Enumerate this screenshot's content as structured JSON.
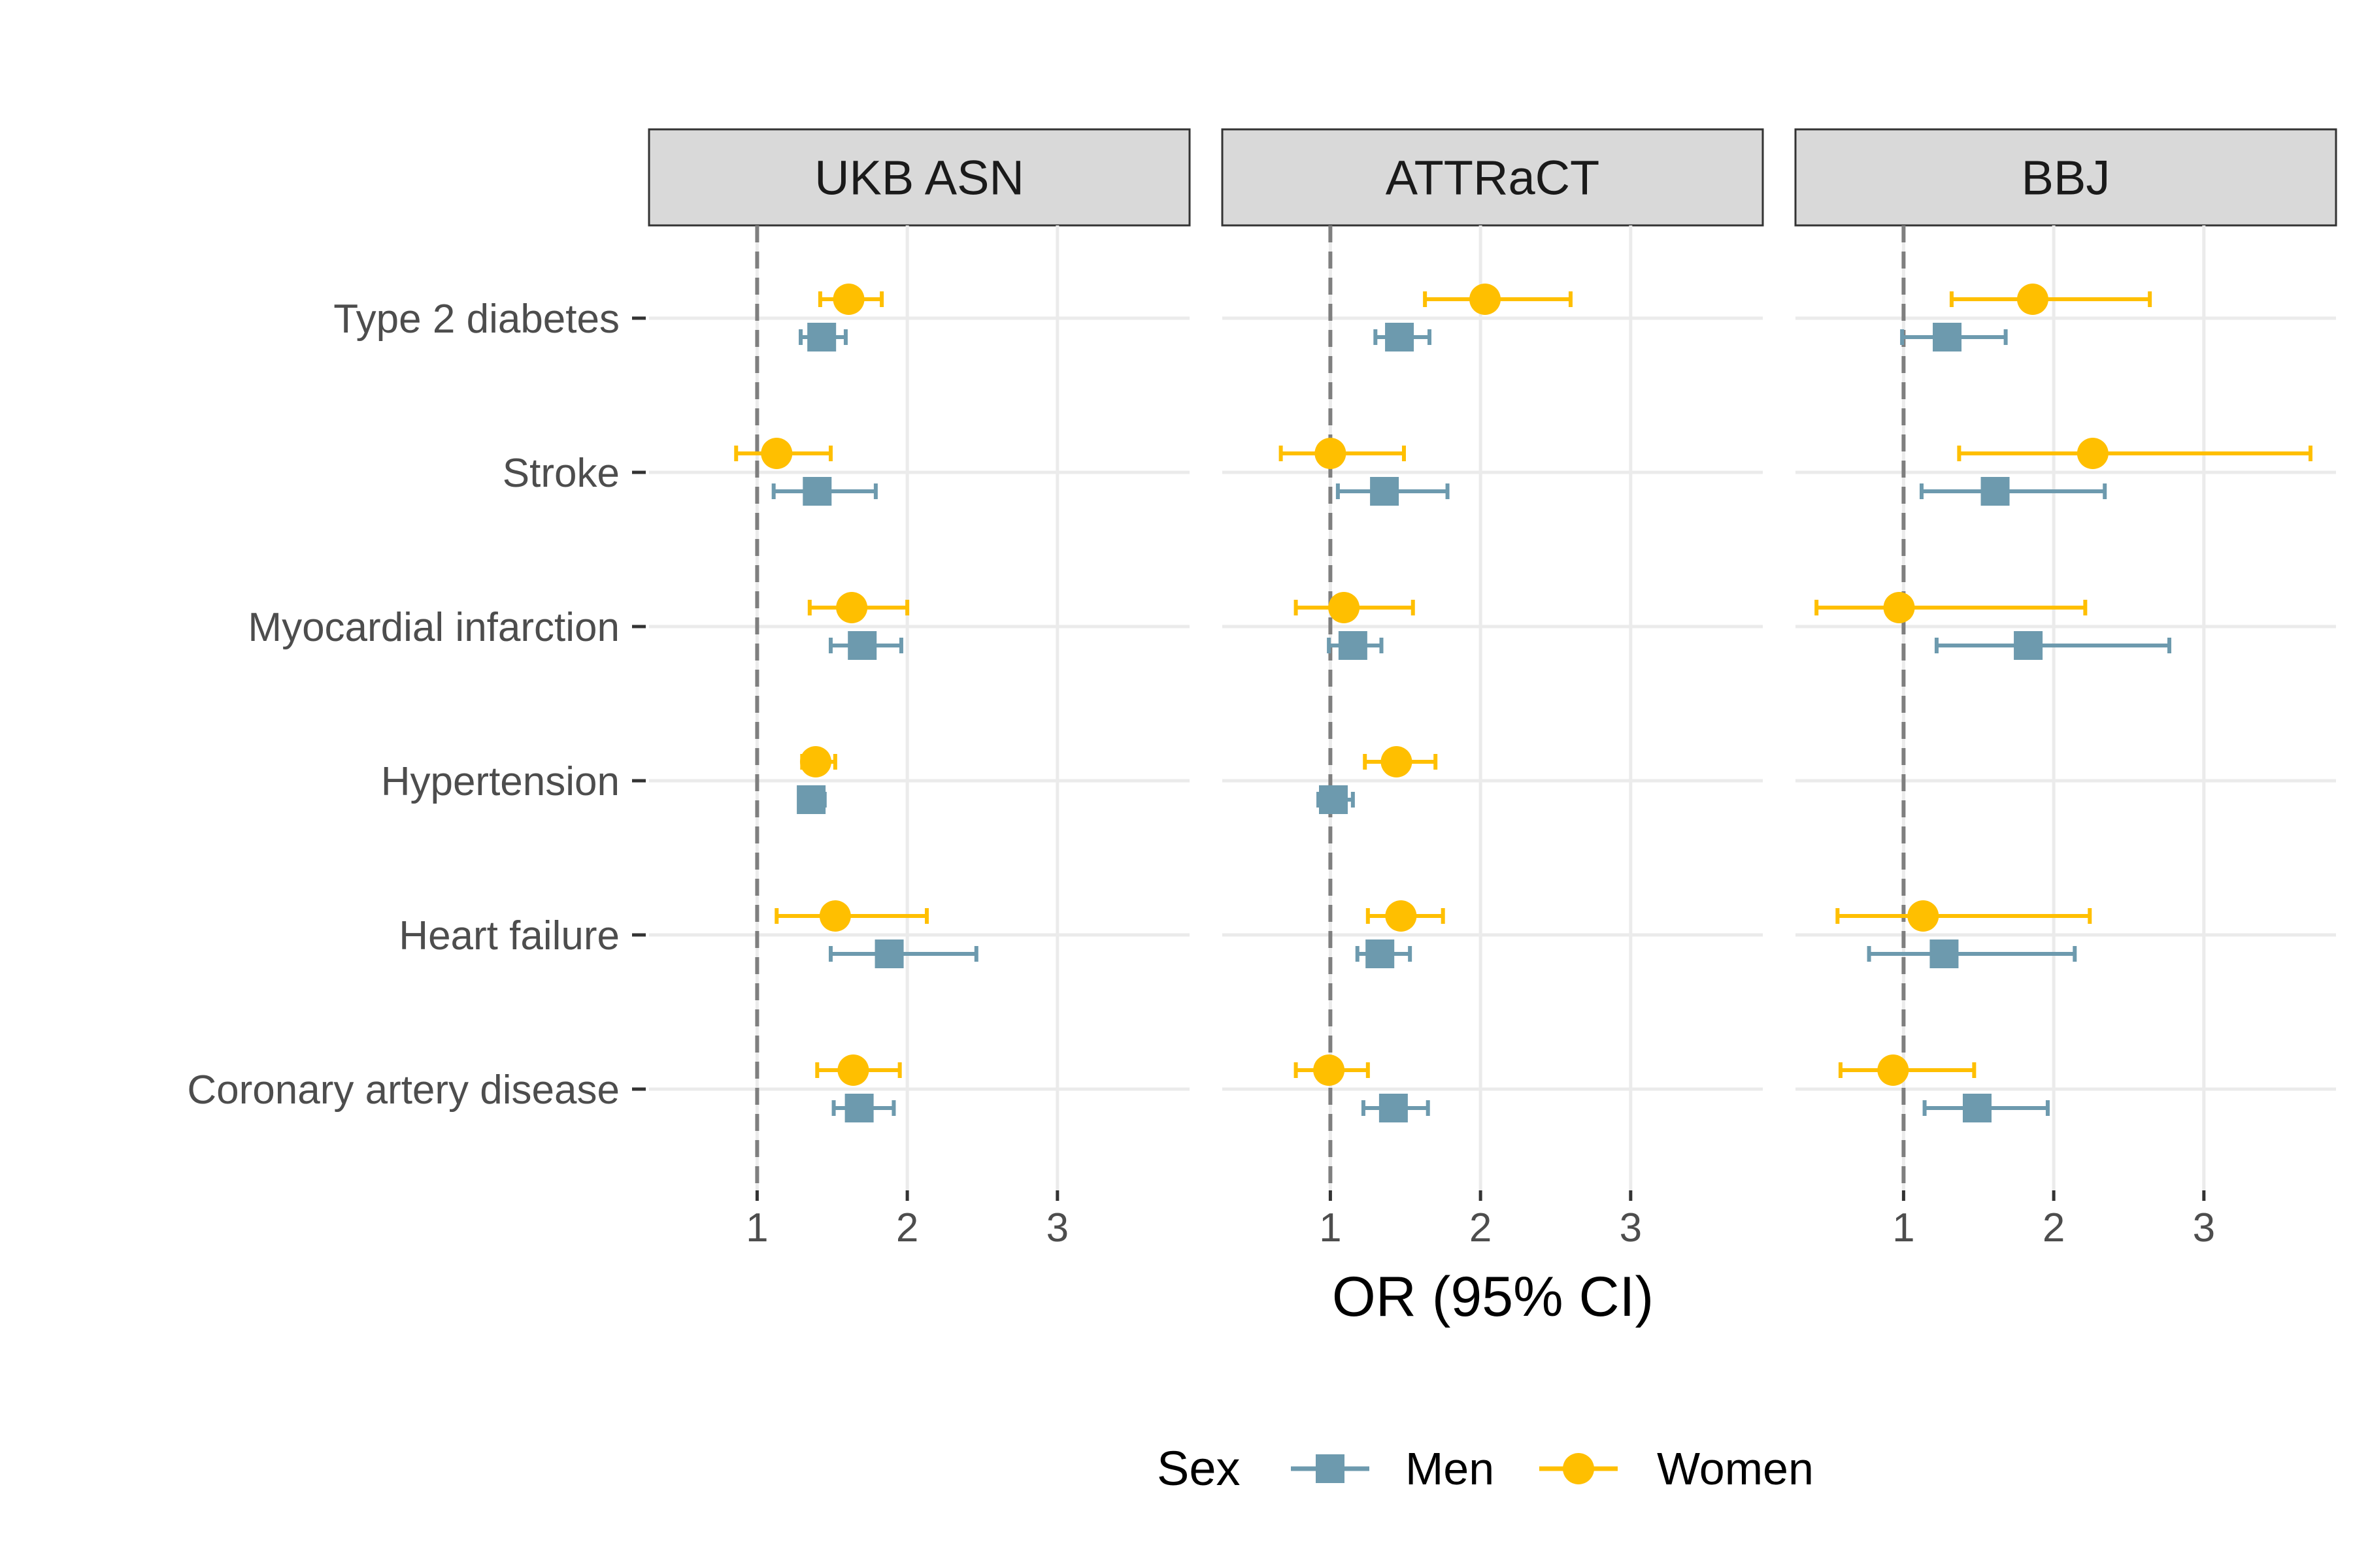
{
  "chart_data": {
    "type": "forest",
    "xlabel": "OR (95% CI)",
    "xticks": [
      1,
      2,
      3
    ],
    "xlim": [
      0.28,
      3.88
    ],
    "reference_line": 1,
    "grid": true,
    "legend": {
      "title": "Sex",
      "position": "bottom",
      "entries": [
        {
          "name": "Men",
          "color": "#6d9aae",
          "shape": "square"
        },
        {
          "name": "Women",
          "color": "#ffbf00",
          "shape": "circle"
        }
      ]
    },
    "categories": [
      "Type 2 diabetes",
      "Stroke",
      "Myocardial infarction",
      "Hypertension",
      "Heart failure",
      "Coronary artery disease"
    ],
    "panels": [
      {
        "name": "UKB ASN",
        "series": [
          {
            "name": "Men",
            "points": [
              {
                "or": 1.43,
                "lo": 1.29,
                "hi": 1.59
              },
              {
                "or": 1.4,
                "lo": 1.11,
                "hi": 1.79
              },
              {
                "or": 1.7,
                "lo": 1.49,
                "hi": 1.96
              },
              {
                "or": 1.36,
                "lo": 1.28,
                "hi": 1.45
              },
              {
                "or": 1.88,
                "lo": 1.49,
                "hi": 2.46
              },
              {
                "or": 1.68,
                "lo": 1.51,
                "hi": 1.91
              }
            ]
          },
          {
            "name": "Women",
            "points": [
              {
                "or": 1.61,
                "lo": 1.42,
                "hi": 1.83
              },
              {
                "or": 1.13,
                "lo": 0.86,
                "hi": 1.49
              },
              {
                "or": 1.63,
                "lo": 1.35,
                "hi": 2.0
              },
              {
                "or": 1.39,
                "lo": 1.3,
                "hi": 1.52
              },
              {
                "or": 1.52,
                "lo": 1.13,
                "hi": 2.13
              },
              {
                "or": 1.64,
                "lo": 1.4,
                "hi": 1.95
              }
            ]
          }
        ]
      },
      {
        "name": "ATTRaCT",
        "series": [
          {
            "name": "Men",
            "points": [
              {
                "or": 1.46,
                "lo": 1.3,
                "hi": 1.66
              },
              {
                "or": 1.36,
                "lo": 1.05,
                "hi": 1.78
              },
              {
                "or": 1.15,
                "lo": 0.99,
                "hi": 1.34
              },
              {
                "or": 1.02,
                "lo": 0.92,
                "hi": 1.15
              },
              {
                "or": 1.33,
                "lo": 1.18,
                "hi": 1.53
              },
              {
                "or": 1.42,
                "lo": 1.22,
                "hi": 1.65
              }
            ]
          },
          {
            "name": "Women",
            "points": [
              {
                "or": 2.03,
                "lo": 1.63,
                "hi": 2.6
              },
              {
                "or": 1.0,
                "lo": 0.67,
                "hi": 1.49
              },
              {
                "or": 1.09,
                "lo": 0.77,
                "hi": 1.55
              },
              {
                "or": 1.44,
                "lo": 1.23,
                "hi": 1.7
              },
              {
                "or": 1.47,
                "lo": 1.25,
                "hi": 1.75
              },
              {
                "or": 0.99,
                "lo": 0.77,
                "hi": 1.25
              }
            ]
          }
        ]
      },
      {
        "name": "BBJ",
        "series": [
          {
            "name": "Men",
            "points": [
              {
                "or": 1.29,
                "lo": 0.99,
                "hi": 1.68
              },
              {
                "or": 1.61,
                "lo": 1.12,
                "hi": 2.34
              },
              {
                "or": 1.83,
                "lo": 1.22,
                "hi": 2.77
              },
              null,
              {
                "or": 1.27,
                "lo": 0.77,
                "hi": 2.14
              },
              {
                "or": 1.49,
                "lo": 1.14,
                "hi": 1.96
              }
            ]
          },
          {
            "name": "Women",
            "points": [
              {
                "or": 1.86,
                "lo": 1.32,
                "hi": 2.64
              },
              {
                "or": 2.26,
                "lo": 1.37,
                "hi": 3.71
              },
              {
                "or": 0.97,
                "lo": 0.42,
                "hi": 2.21
              },
              null,
              {
                "or": 1.13,
                "lo": 0.56,
                "hi": 2.24
              },
              {
                "or": 0.93,
                "lo": 0.58,
                "hi": 1.47
              }
            ]
          }
        ]
      }
    ]
  }
}
